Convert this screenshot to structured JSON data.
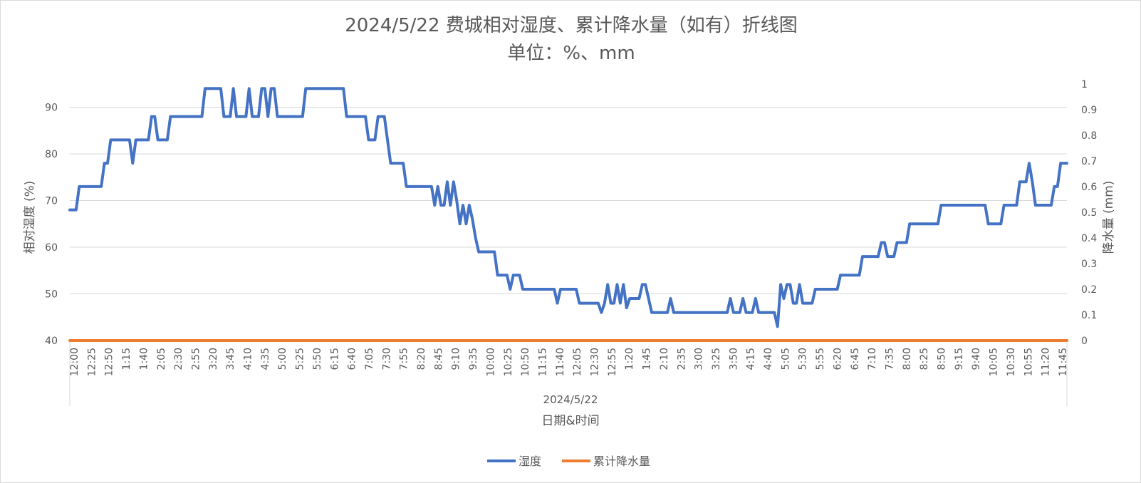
{
  "chart_data": {
    "type": "line",
    "title": "2024/5/22 费城相对湿度、累计降水量（如有）折线图",
    "subtitle": "单位：%、mm",
    "xlabel": "日期&时间",
    "x_group_label": "2024/5/22",
    "ylabel": "相对湿度 (%)",
    "y2label": "降水量 (mm)",
    "ylim": [
      40,
      95
    ],
    "y_ticks": [
      "40",
      "50",
      "60",
      "70",
      "80",
      "90"
    ],
    "y2lim": [
      0,
      1
    ],
    "y2_ticks": [
      "0",
      "0.1",
      "0.2",
      "0.3",
      "0.4",
      "0.5",
      "0.6",
      "0.7",
      "0.8",
      "0.9",
      "1"
    ],
    "grid": true,
    "legend_position": "bottom",
    "x_tick_labels": [
      "12:00",
      "12:25",
      "12:50",
      "1:15",
      "1:40",
      "2:05",
      "2:30",
      "2:55",
      "3:20",
      "3:45",
      "4:10",
      "4:35",
      "5:00",
      "5:25",
      "5:50",
      "6:15",
      "6:40",
      "7:05",
      "7:30",
      "7:55",
      "8:20",
      "8:45",
      "9:10",
      "9:35",
      "10:00",
      "10:25",
      "10:50",
      "11:15",
      "11:40",
      "12:05",
      "12:30",
      "12:55",
      "1:20",
      "1:45",
      "2:10",
      "2:35",
      "3:00",
      "3:25",
      "3:50",
      "4:15",
      "4:40",
      "5:05",
      "5:30",
      "5:55",
      "6:20",
      "6:45",
      "7:10",
      "7:35",
      "8:00",
      "8:25",
      "8:50",
      "9:15",
      "9:40",
      "10:05",
      "10:30",
      "10:55",
      "11:20",
      "11:45"
    ],
    "series": [
      {
        "name": "湿度",
        "color": "#4472c4",
        "axis": "left",
        "values": [
          68,
          68,
          68,
          73,
          73,
          73,
          73,
          73,
          73,
          73,
          73,
          78,
          78,
          83,
          83,
          83,
          83,
          83,
          83,
          83,
          78,
          83,
          83,
          83,
          83,
          83,
          88,
          88,
          83,
          83,
          83,
          83,
          88,
          88,
          88,
          88,
          88,
          88,
          88,
          88,
          88,
          88,
          88,
          94,
          94,
          94,
          94,
          94,
          94,
          88,
          88,
          88,
          94,
          88,
          88,
          88,
          88,
          94,
          88,
          88,
          88,
          94,
          94,
          88,
          94,
          94,
          88,
          88,
          88,
          88,
          88,
          88,
          88,
          88,
          88,
          94,
          94,
          94,
          94,
          94,
          94,
          94,
          94,
          94,
          94,
          94,
          94,
          94,
          88,
          88,
          88,
          88,
          88,
          88,
          88,
          83,
          83,
          83,
          88,
          88,
          88,
          83,
          78,
          78,
          78,
          78,
          78,
          73,
          73,
          73,
          73,
          73,
          73,
          73,
          73,
          73,
          69,
          73,
          69,
          69,
          74,
          69,
          74,
          70,
          65,
          69,
          65,
          69,
          66,
          62,
          59,
          59,
          59,
          59,
          59,
          59,
          54,
          54,
          54,
          54,
          51,
          54,
          54,
          54,
          51,
          51,
          51,
          51,
          51,
          51,
          51,
          51,
          51,
          51,
          51,
          48,
          51,
          51,
          51,
          51,
          51,
          51,
          48,
          48,
          48,
          48,
          48,
          48,
          48,
          46,
          48,
          52,
          48,
          48,
          52,
          48,
          52,
          47,
          49,
          49,
          49,
          49,
          52,
          52,
          49,
          46,
          46,
          46,
          46,
          46,
          46,
          49,
          46,
          46,
          46,
          46,
          46,
          46,
          46,
          46,
          46,
          46,
          46,
          46,
          46,
          46,
          46,
          46,
          46,
          46,
          49,
          46,
          46,
          46,
          49,
          46,
          46,
          46,
          49,
          46,
          46,
          46,
          46,
          46,
          46,
          43,
          52,
          49,
          52,
          52,
          48,
          48,
          52,
          48,
          48,
          48,
          48,
          51,
          51,
          51,
          51,
          51,
          51,
          51,
          51,
          54,
          54,
          54,
          54,
          54,
          54,
          54,
          58,
          58,
          58,
          58,
          58,
          58,
          61,
          61,
          58,
          58,
          58,
          61,
          61,
          61,
          61,
          65,
          65,
          65,
          65,
          65,
          65,
          65,
          65,
          65,
          65,
          69,
          69,
          69,
          69,
          69,
          69,
          69,
          69,
          69,
          69,
          69,
          69,
          69,
          69,
          69,
          65,
          65,
          65,
          65,
          65,
          69,
          69,
          69,
          69,
          69,
          74,
          74,
          74,
          78,
          74,
          69,
          69,
          69,
          69,
          69,
          69,
          73,
          73,
          78,
          78,
          78
        ],
        "value_labels": []
      },
      {
        "name": "累计降水量",
        "color": "#ed7d31",
        "axis": "right",
        "values": [
          0,
          0
        ]
      }
    ]
  }
}
